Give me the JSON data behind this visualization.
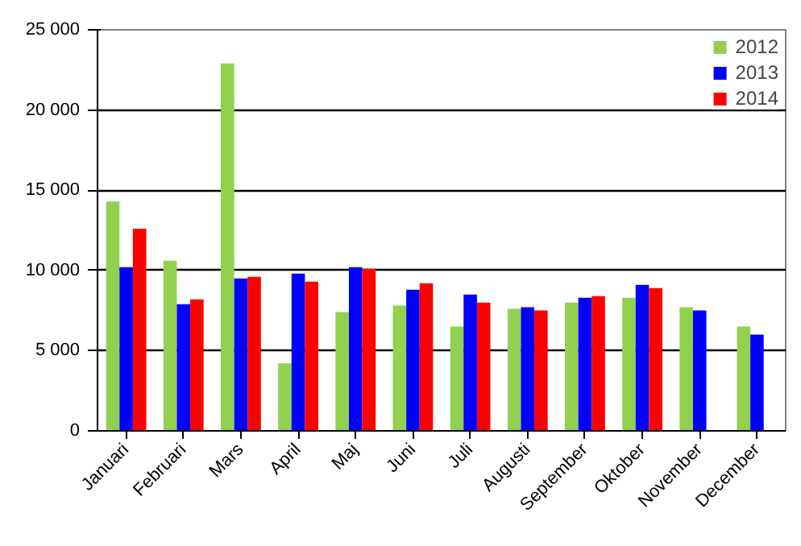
{
  "chart_data": {
    "type": "bar",
    "categories": [
      "Januari",
      "Februari",
      "Mars",
      "April",
      "Maj",
      "Juni",
      "Juli",
      "Augusti",
      "September",
      "Oktober",
      "November",
      "December"
    ],
    "series": [
      {
        "name": "2012",
        "color": "#92d050",
        "values": [
          14300,
          10600,
          22900,
          4200,
          7400,
          7800,
          6500,
          7600,
          8000,
          8300,
          7700,
          6500
        ]
      },
      {
        "name": "2013",
        "color": "#0000ff",
        "values": [
          10200,
          7900,
          9500,
          9800,
          10200,
          8800,
          8500,
          7700,
          8300,
          9100,
          7500,
          6000
        ]
      },
      {
        "name": "2014",
        "color": "#ff0000",
        "values": [
          12600,
          8200,
          9600,
          9300,
          10100,
          9200,
          8000,
          7500,
          8400,
          8900,
          null,
          null
        ]
      }
    ],
    "ylim": [
      0,
      25000
    ],
    "yticks": [
      {
        "value": 0,
        "label": "0"
      },
      {
        "value": 5000,
        "label": "5 000"
      },
      {
        "value": 10000,
        "label": "10 000"
      },
      {
        "value": 15000,
        "label": "15 000"
      },
      {
        "value": 20000,
        "label": "20 000"
      },
      {
        "value": 25000,
        "label": "25 000"
      }
    ],
    "grid": "y",
    "legend": "top right"
  }
}
